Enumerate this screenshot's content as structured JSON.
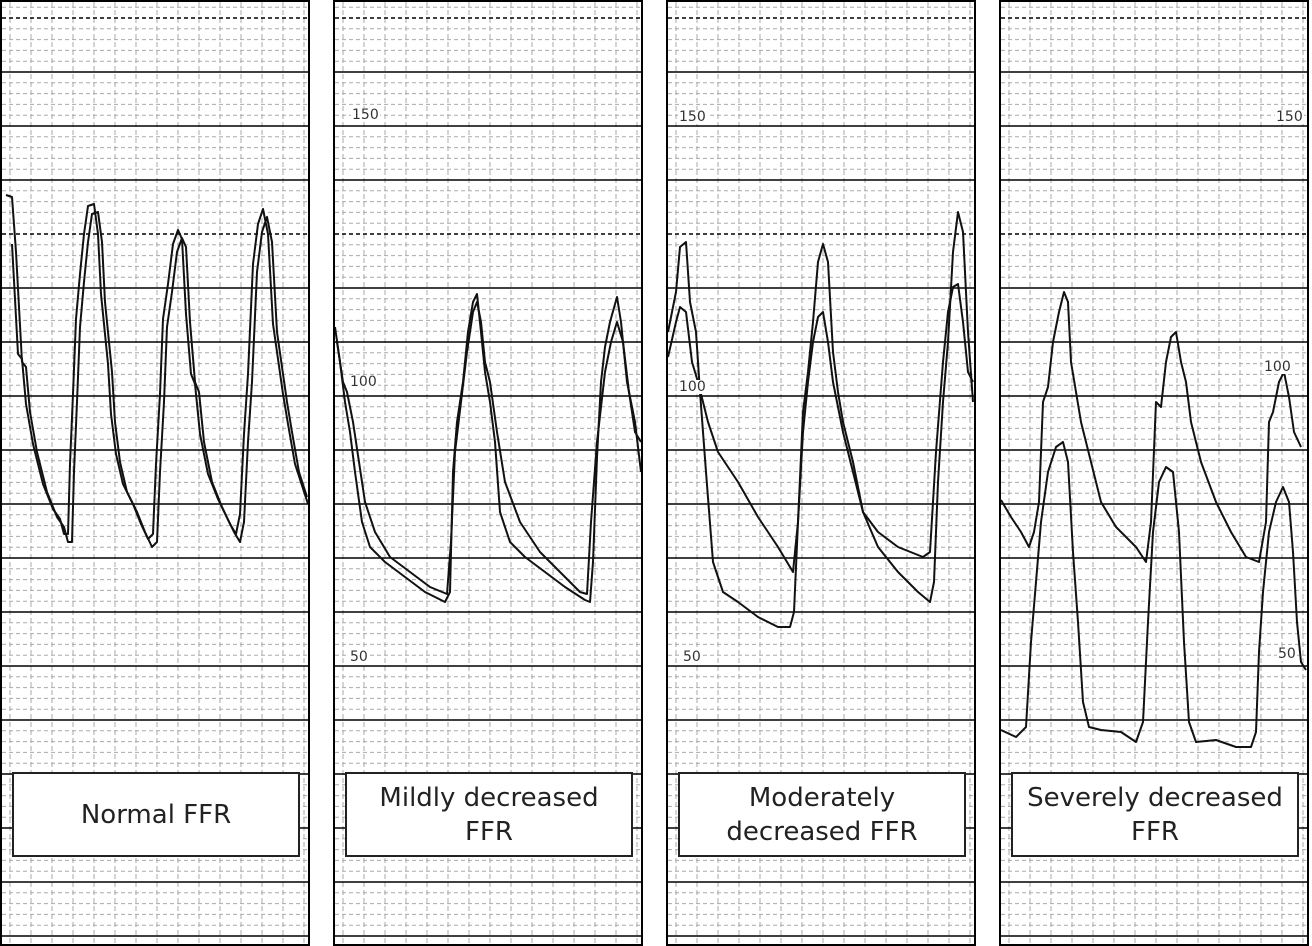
{
  "panels": [
    {
      "label": [
        "Normal FFR"
      ]
    },
    {
      "label": [
        "Mildly decreased",
        "FFR"
      ],
      "scale": [
        "150",
        "100",
        "50"
      ]
    },
    {
      "label": [
        "Moderately",
        "decreased FFR"
      ],
      "scale": [
        "150",
        "100",
        "50"
      ]
    },
    {
      "label": [
        "Severely decreased",
        "FFR"
      ],
      "scale": [
        "150",
        "100",
        "50"
      ]
    }
  ]
}
